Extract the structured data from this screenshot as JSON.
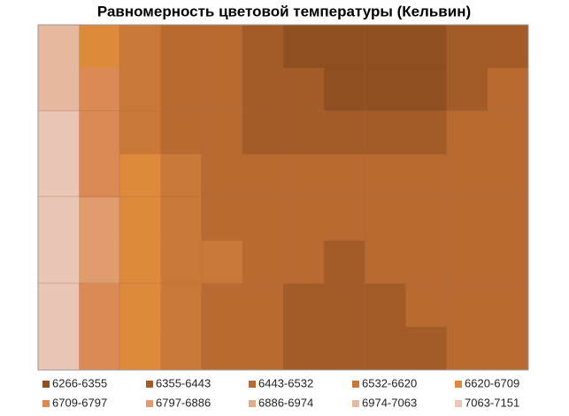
{
  "chart_data": {
    "type": "contour",
    "title": "Равномерность цветовой температуры (Кельвин)",
    "levels": [
      6266,
      6355,
      6443,
      6532,
      6620,
      6709,
      6797,
      6886,
      6974,
      7063,
      7151
    ],
    "bands": [
      {
        "name": "6266-6355",
        "color": "#8f4f20"
      },
      {
        "name": "6355-6443",
        "color": "#a35c28"
      },
      {
        "name": "6443-6532",
        "color": "#b86a30"
      },
      {
        "name": "6532-6620",
        "color": "#c97838"
      },
      {
        "name": "6620-6709",
        "color": "#de8a3c"
      },
      {
        "name": "6709-6797",
        "color": "#dc8a55"
      },
      {
        "name": "6797-6886",
        "color": "#e09c6c"
      },
      {
        "name": "6886-6974",
        "color": "#e4ad87"
      },
      {
        "name": "6974-7063",
        "color": "#e6b9a0"
      },
      {
        "name": "7063-7151",
        "color": "#e9c6b5"
      }
    ],
    "z": [
      [
        7000,
        6700,
        6560,
        6500,
        6470,
        6420,
        6330,
        6290,
        6280,
        6300,
        6400,
        6440
      ],
      [
        7050,
        6720,
        6580,
        6510,
        6480,
        6400,
        6360,
        6330,
        6320,
        6350,
        6420,
        6450
      ],
      [
        7100,
        6760,
        6600,
        6530,
        6490,
        6420,
        6390,
        6380,
        6400,
        6420,
        6450,
        6480
      ],
      [
        7120,
        6780,
        6620,
        6560,
        6500,
        6470,
        6460,
        6480,
        6490,
        6500,
        6500,
        6500
      ],
      [
        7130,
        6800,
        6640,
        6580,
        6530,
        6500,
        6490,
        6470,
        6480,
        6500,
        6510,
        6500
      ],
      [
        7130,
        6800,
        6640,
        6590,
        6540,
        6510,
        6460,
        6440,
        6450,
        6470,
        6480,
        6490
      ],
      [
        7120,
        6790,
        6630,
        6580,
        6530,
        6500,
        6440,
        6420,
        6430,
        6450,
        6460,
        6470
      ],
      [
        7100,
        6770,
        6620,
        6560,
        6510,
        6480,
        6430,
        6420,
        6420,
        6440,
        6450,
        6460
      ]
    ]
  }
}
